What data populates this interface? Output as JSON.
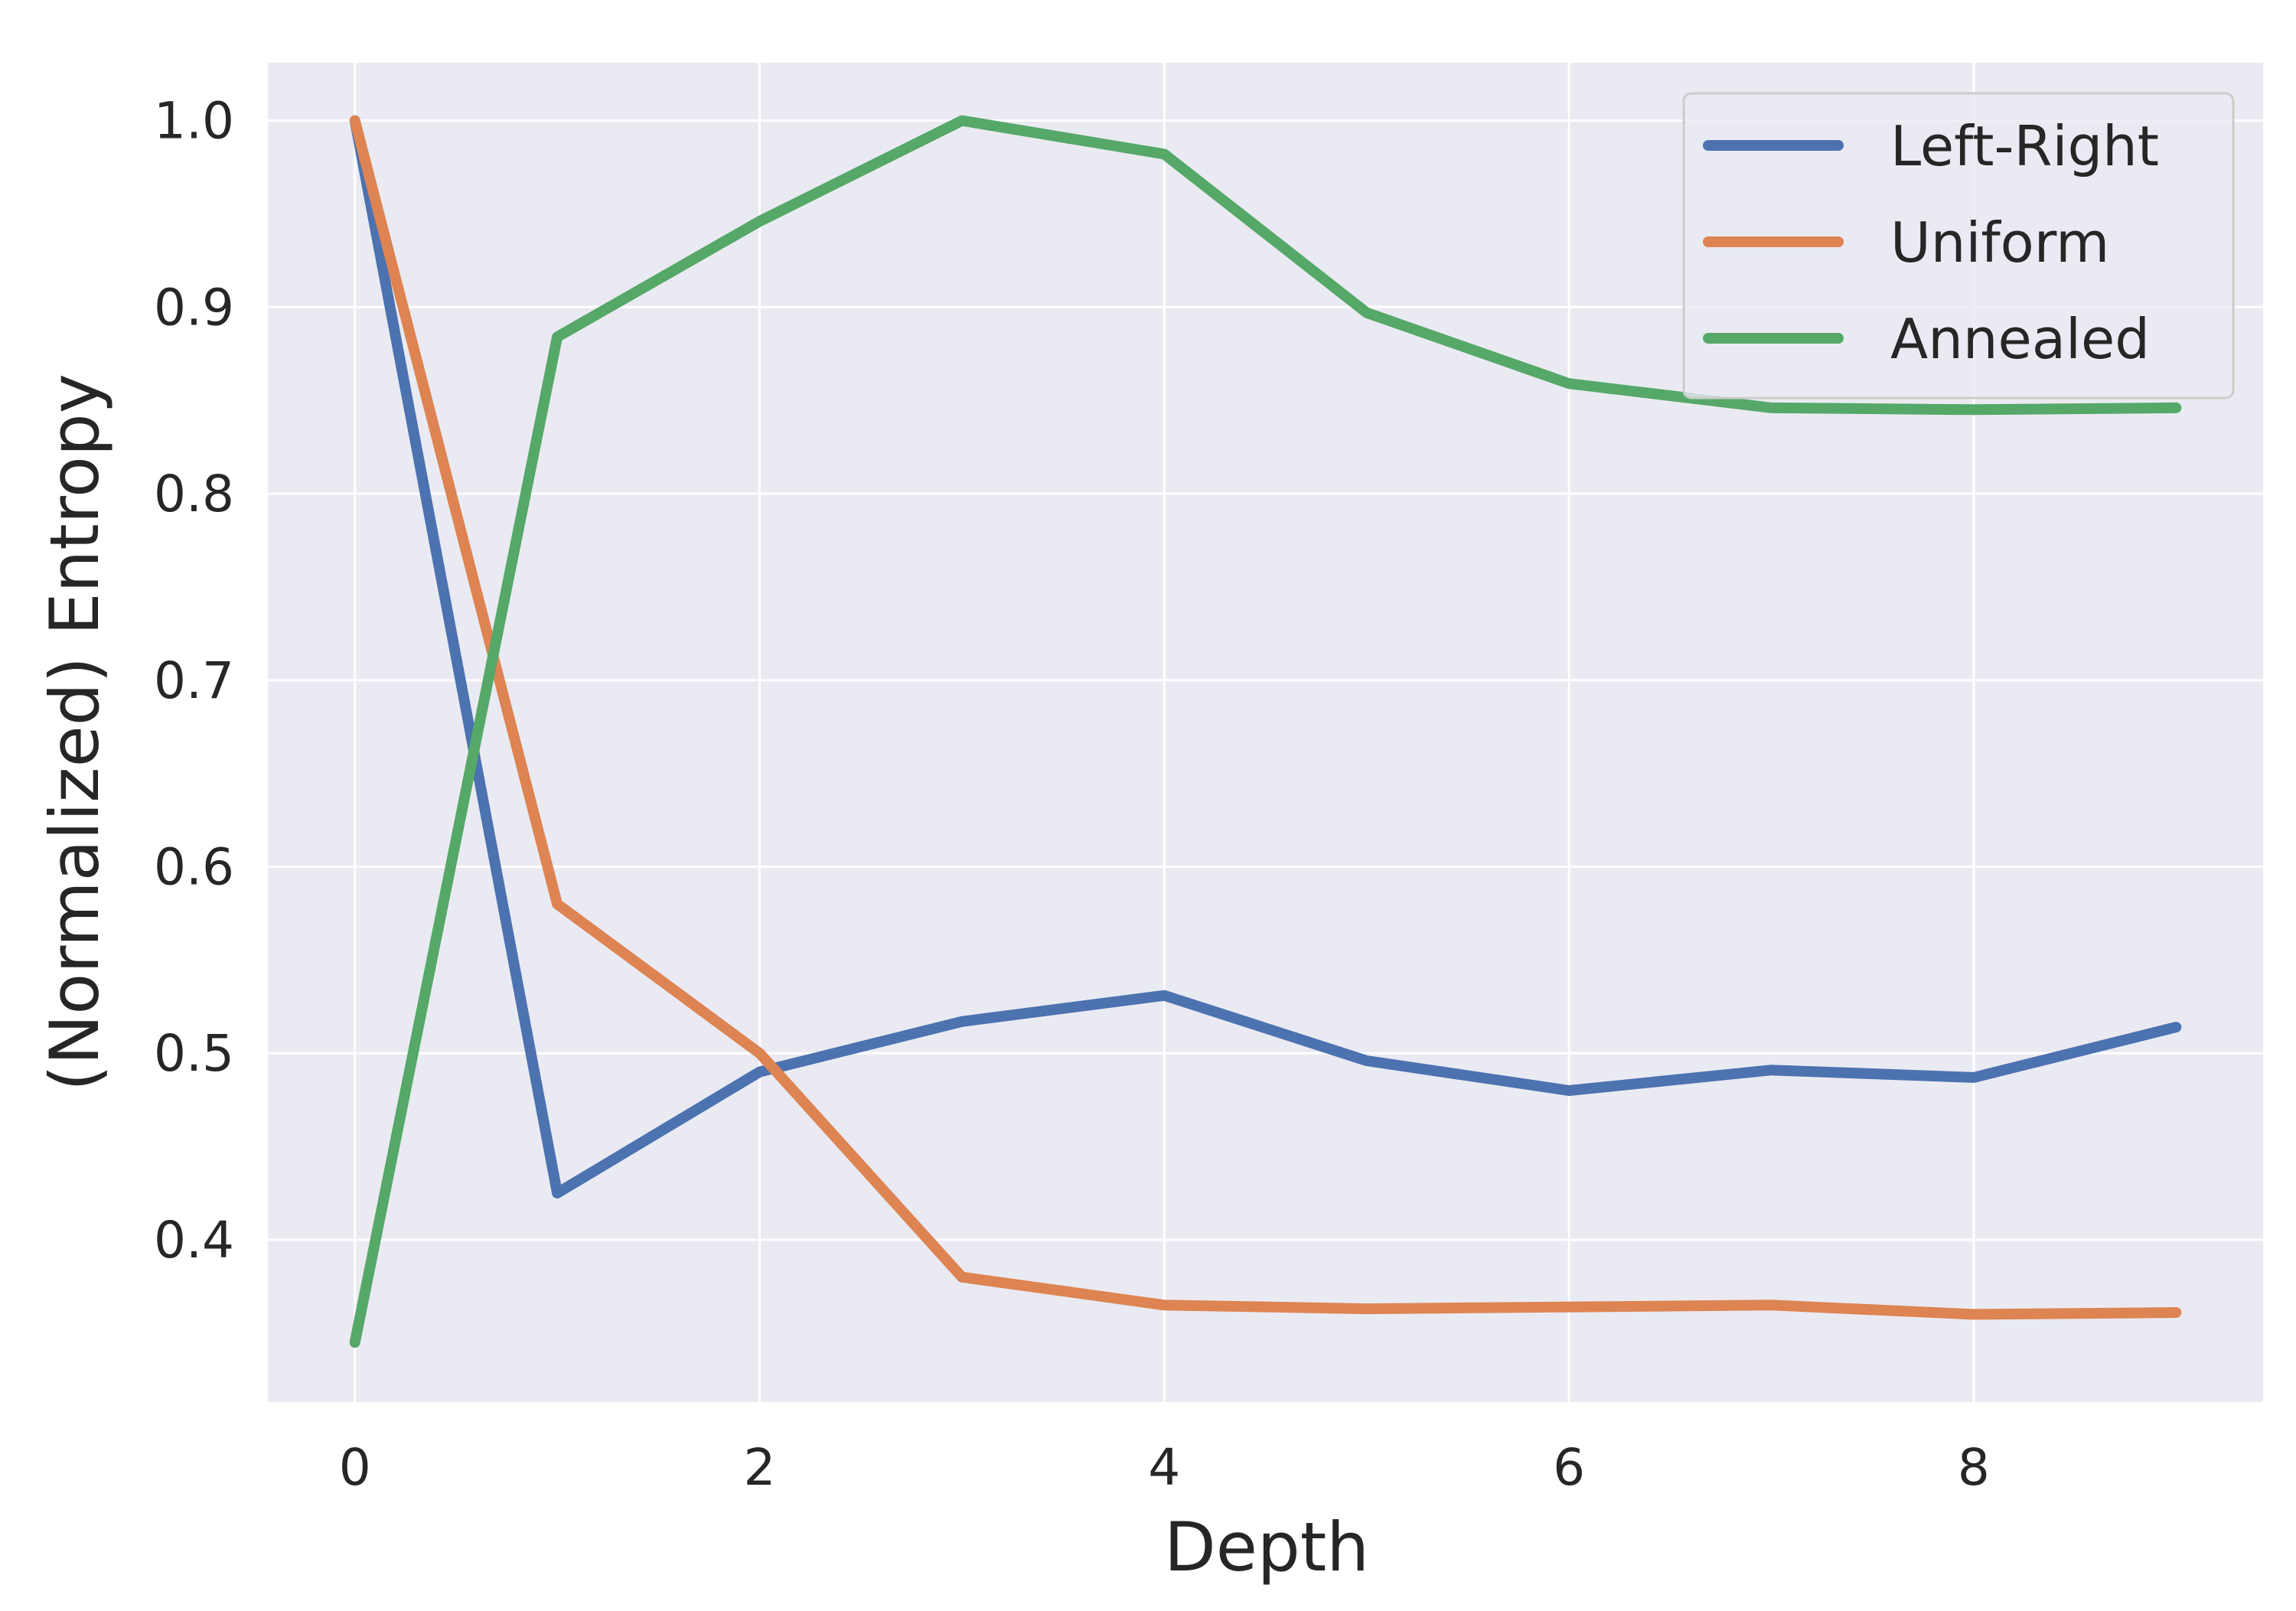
{
  "chart_data": {
    "type": "line",
    "title": "",
    "xlabel": "Depth",
    "ylabel": "(Normalized) Entropy",
    "x": [
      0,
      1,
      2,
      3,
      4,
      5,
      6,
      7,
      8,
      9
    ],
    "xlim": [
      -0.43,
      9.43
    ],
    "ylim": [
      0.313,
      1.031
    ],
    "xticks": [
      0,
      2,
      4,
      6,
      8
    ],
    "yticks": [
      0.4,
      0.5,
      0.6,
      0.7,
      0.8,
      0.9,
      1.0
    ],
    "xtick_labels": [
      "0",
      "2",
      "4",
      "6",
      "8"
    ],
    "ytick_labels": [
      "0.4",
      "0.5",
      "0.6",
      "0.7",
      "0.8",
      "0.9",
      "1.0"
    ],
    "grid": true,
    "legend_position": "top-right",
    "series": [
      {
        "name": "Left-Right",
        "color": "#4c72b0",
        "values": [
          1.0,
          0.425,
          0.49,
          0.517,
          0.531,
          0.496,
          0.48,
          0.491,
          0.487,
          0.514
        ]
      },
      {
        "name": "Uniform",
        "color": "#dd8452",
        "values": [
          1.0,
          0.58,
          0.5,
          0.38,
          0.365,
          0.363,
          0.364,
          0.365,
          0.36,
          0.361
        ]
      },
      {
        "name": "Annealed",
        "color": "#55a868",
        "values": [
          0.345,
          0.884,
          0.946,
          1.0,
          0.982,
          0.897,
          0.859,
          0.846,
          0.845,
          0.846
        ]
      }
    ]
  }
}
